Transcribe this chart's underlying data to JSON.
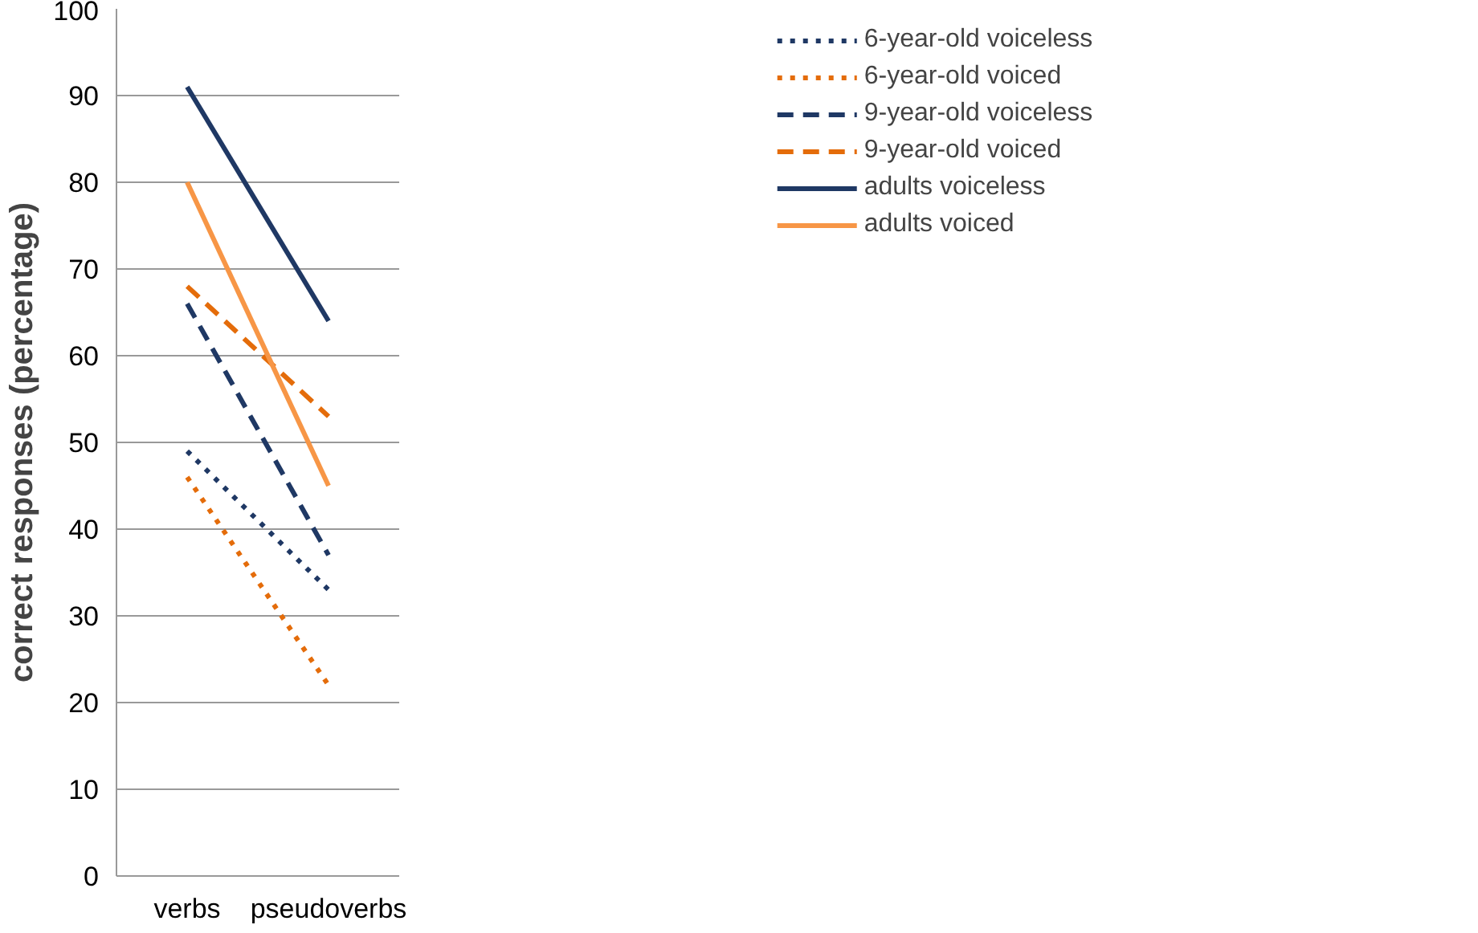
{
  "chart_data": {
    "type": "line",
    "ylabel": "correct responses (percentage)",
    "categories": [
      "verbs",
      "pseudoverbs"
    ],
    "series": [
      {
        "name": "6-year-old voiceless",
        "color": "#1f3864",
        "values": [
          49,
          33
        ],
        "line_style": "dotted"
      },
      {
        "name": "6-year-old voiced",
        "color": "#e46c0a",
        "values": [
          46,
          22
        ],
        "line_style": "dotted"
      },
      {
        "name": "9-year-old voiceless",
        "color": "#1f3864",
        "values": [
          66,
          37
        ],
        "line_style": "dashed"
      },
      {
        "name": "9-year-old voiced",
        "color": "#e46c0a",
        "values": [
          68,
          53
        ],
        "line_style": "dashed"
      },
      {
        "name": "adults voiceless",
        "color": "#1f3864",
        "values": [
          91,
          64
        ],
        "line_style": "solid"
      },
      {
        "name": "adults voiced",
        "color": "#f79646",
        "values": [
          80,
          45
        ],
        "line_style": "solid"
      }
    ],
    "ylim": [
      0,
      100
    ],
    "yticks": [
      0,
      10,
      20,
      30,
      40,
      50,
      60,
      70,
      80,
      90,
      100
    ],
    "grid": "y",
    "legend": "right",
    "marker": "none"
  }
}
